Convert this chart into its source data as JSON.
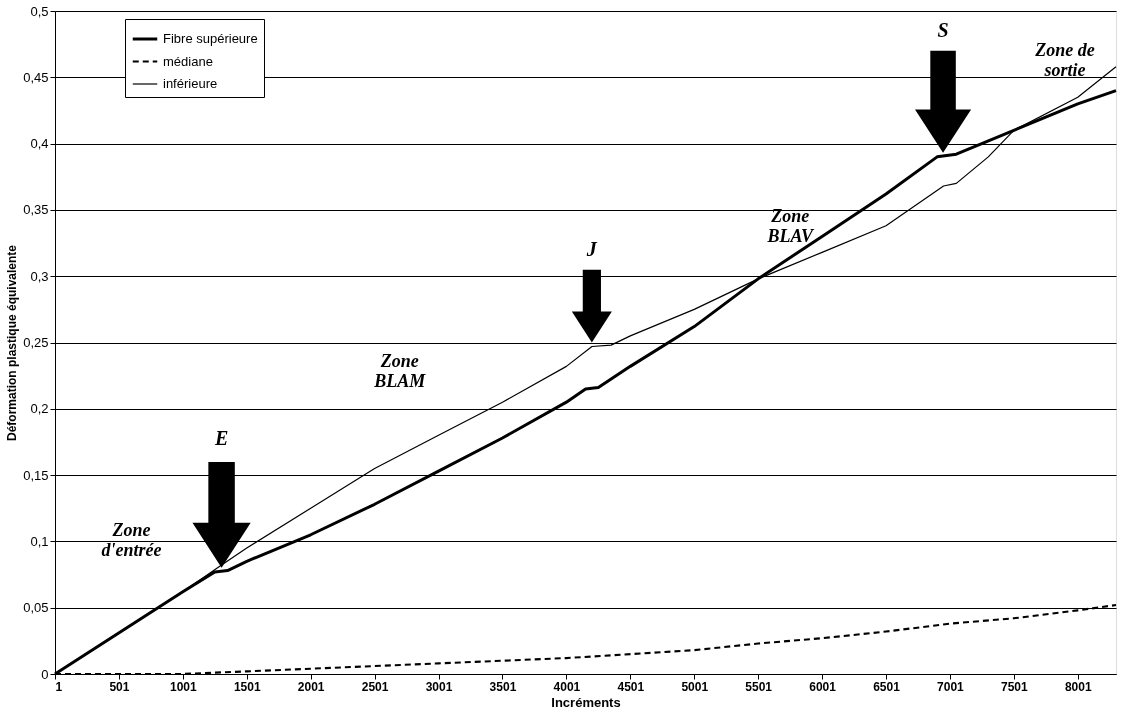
{
  "chart_data": {
    "type": "line",
    "xlabel": "Incréments",
    "ylabel": "Déformation plastique équivalente",
    "xlim": [
      1,
      8300
    ],
    "xticks": [
      1,
      501,
      1001,
      1501,
      2001,
      2501,
      3001,
      3501,
      4001,
      4501,
      5001,
      5501,
      6001,
      6501,
      7001,
      7501,
      8001
    ],
    "ylim": [
      0,
      0.5
    ],
    "yticks": [
      {
        "value": 0,
        "label": "0"
      },
      {
        "value": 0.05,
        "label": "0,05"
      },
      {
        "value": 0.1,
        "label": "0,1"
      },
      {
        "value": 0.15,
        "label": "0,15"
      },
      {
        "value": 0.2,
        "label": "0,2"
      },
      {
        "value": 0.25,
        "label": "0,25"
      },
      {
        "value": 0.3,
        "label": "0,3"
      },
      {
        "value": 0.35,
        "label": "0,35"
      },
      {
        "value": 0.4,
        "label": "0,4"
      },
      {
        "value": 0.45,
        "label": "0,45"
      },
      {
        "value": 0.5,
        "label": "0,5"
      }
    ],
    "grid": "y",
    "legend": "top left",
    "marker": "none",
    "series": [
      {
        "name": "Fibre supérieure",
        "color": "#000000",
        "line_style": "solid",
        "x": [
          1,
          1001,
          1251,
          1351,
          1501,
          2001,
          2501,
          3001,
          3501,
          4001,
          4151,
          4251,
          4501,
          5001,
          5501,
          6001,
          6501,
          6901,
          7051,
          7501,
          8001,
          8300
        ],
        "values": [
          0,
          0.062,
          0.077,
          0.078,
          0.085,
          0.105,
          0.128,
          0.153,
          0.178,
          0.205,
          0.215,
          0.216,
          0.232,
          0.262,
          0.298,
          0.33,
          0.362,
          0.39,
          0.392,
          0.41,
          0.43,
          0.44
        ]
      },
      {
        "name": "médiane",
        "color": "#000000",
        "line_style": "dashed",
        "x": [
          1,
          1001,
          1501,
          2001,
          3001,
          4001,
          5001,
          5501,
          6001,
          6501,
          7001,
          7501,
          8001,
          8300
        ],
        "values": [
          0,
          0.0,
          0.002,
          0.004,
          0.008,
          0.012,
          0.018,
          0.023,
          0.027,
          0.032,
          0.038,
          0.042,
          0.048,
          0.052
        ]
      },
      {
        "name": "inférieure",
        "color": "#000000",
        "line_style": "solid",
        "x": [
          1,
          1001,
          1301,
          1501,
          2001,
          2501,
          3001,
          3501,
          4001,
          4201,
          4351,
          4501,
          5001,
          5501,
          6001,
          6501,
          6951,
          7051,
          7301,
          7501,
          8001,
          8300
        ],
        "values": [
          0,
          0.062,
          0.082,
          0.095,
          0.125,
          0.155,
          0.18,
          0.205,
          0.232,
          0.247,
          0.248,
          0.255,
          0.275,
          0.298,
          0.318,
          0.338,
          0.368,
          0.37,
          0.39,
          0.41,
          0.435,
          0.458
        ]
      }
    ],
    "annotations": [
      "E",
      "J",
      "S",
      "Zone\nd'entrée",
      "Zone\nBLAM",
      "Zone\nBLAV",
      "Zone de\nsortie"
    ]
  }
}
